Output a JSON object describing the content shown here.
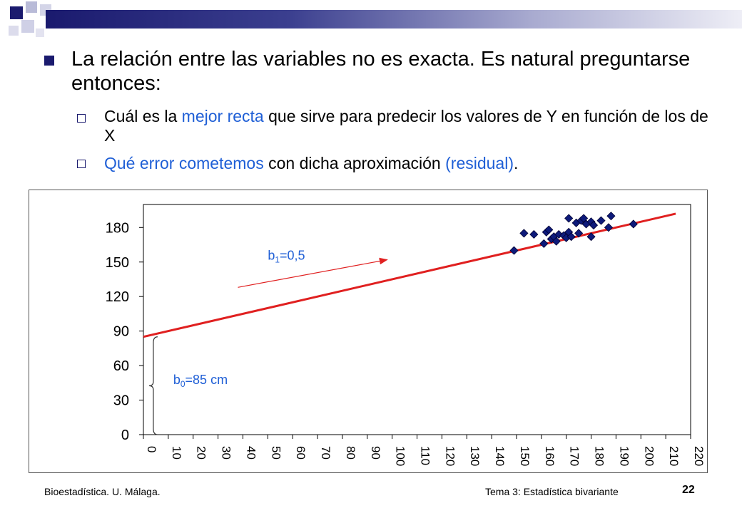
{
  "slide": {
    "bullet_main": "La relación entre las variables no es exacta. Es natural preguntarse entonces:",
    "sub1": {
      "prefix": " Cuál es la ",
      "highlight": "mejor recta",
      "suffix": " que sirve para predecir los valores de Y en función de los de X"
    },
    "sub2": {
      "highlight": "Qué error cometemos",
      "middle": " con dicha aproximación ",
      "highlight2": "(residual)",
      "end": "."
    }
  },
  "footer": {
    "left": "Bioestadística. U. Málaga.",
    "middle": "Tema 3: Estadística bivariante",
    "page": "22"
  },
  "colors": {
    "accent_blue": "#1f5fd6",
    "navy": "#1a1a6e",
    "marker": "#0d1a7a",
    "line_red": "#e02020"
  },
  "chart_data": {
    "type": "scatter",
    "xlim": [
      0,
      220
    ],
    "ylim": [
      0,
      200
    ],
    "x_ticks": [
      "0",
      "10",
      "20",
      "30",
      "40",
      "50",
      "60",
      "70",
      "80",
      "90",
      "100",
      "110",
      "120",
      "130",
      "140",
      "150",
      "160",
      "170",
      "180",
      "190",
      "200",
      "210",
      "220"
    ],
    "y_ticks": [
      "0",
      "30",
      "60",
      "90",
      "120",
      "150",
      "180"
    ],
    "y_tick_values": [
      0,
      30,
      60,
      90,
      120,
      150,
      180
    ],
    "grid": false,
    "points": [
      [
        149,
        160
      ],
      [
        153,
        175
      ],
      [
        157,
        174
      ],
      [
        161,
        166
      ],
      [
        162,
        176
      ],
      [
        163,
        178
      ],
      [
        164,
        170
      ],
      [
        165,
        172
      ],
      [
        166,
        168
      ],
      [
        167,
        174
      ],
      [
        169,
        173
      ],
      [
        170,
        171
      ],
      [
        171,
        176
      ],
      [
        172,
        172
      ],
      [
        171,
        188
      ],
      [
        174,
        184
      ],
      [
        175,
        175
      ],
      [
        176,
        186
      ],
      [
        177,
        188
      ],
      [
        178,
        183
      ],
      [
        180,
        172
      ],
      [
        180,
        185
      ],
      [
        181,
        182
      ],
      [
        184,
        186
      ],
      [
        187,
        180
      ],
      [
        188,
        190
      ],
      [
        197,
        183
      ]
    ],
    "regression_line": {
      "intercept": 85,
      "slope": 0.5,
      "x_range": [
        0,
        214
      ]
    },
    "annotations": {
      "b1": {
        "base": "b",
        "sub": "1",
        "text": "=0,5"
      },
      "b0": {
        "base": "b",
        "sub": "0",
        "text": "=85 cm"
      }
    }
  }
}
